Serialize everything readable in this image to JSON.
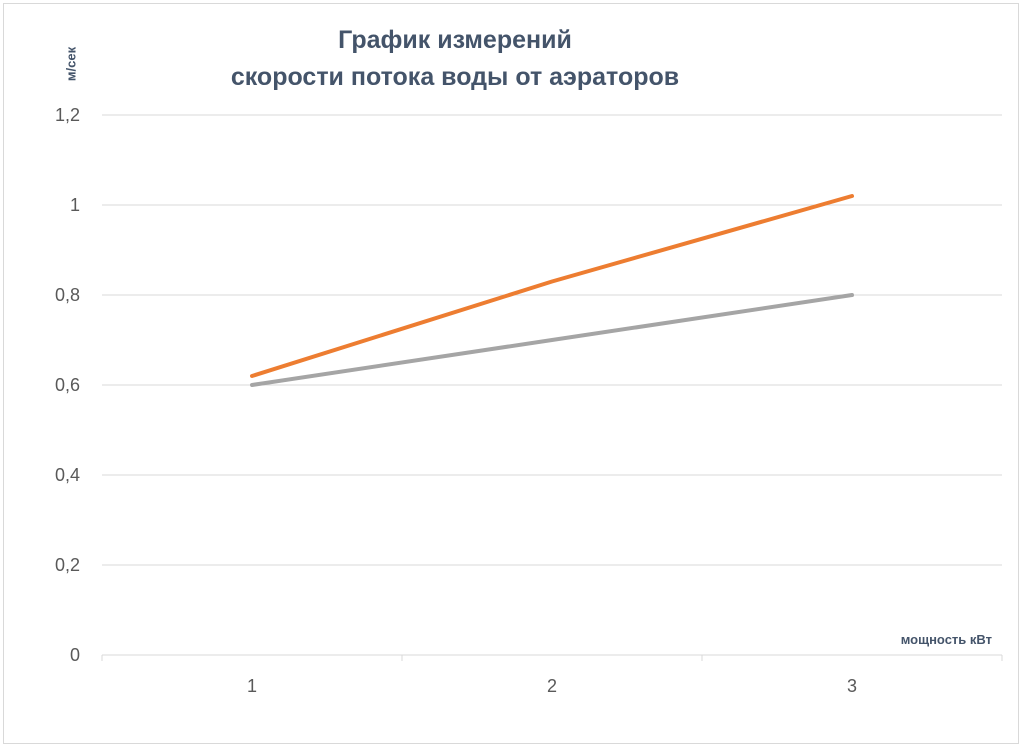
{
  "chart_data": {
    "type": "line",
    "title_line1": "График измерений",
    "title_line2": "скорости потока воды от аэраторов",
    "xlabel": "мощность кВт",
    "ylabel": "м/сек",
    "categories": [
      "1",
      "2",
      "3"
    ],
    "ylim": [
      0,
      1.2
    ],
    "yticks": [
      0,
      0.2,
      0.4,
      0.6,
      0.8,
      1,
      1.2
    ],
    "ytick_labels": [
      "0",
      "0,2",
      "0,4",
      "0,6",
      "0,8",
      "1",
      "1,2"
    ],
    "grid": true,
    "series": [
      {
        "color": "#ed7d31",
        "values": [
          0.62,
          0.83,
          1.02
        ]
      },
      {
        "color": "#a5a5a5",
        "values": [
          0.6,
          0.7,
          0.8
        ]
      }
    ]
  }
}
